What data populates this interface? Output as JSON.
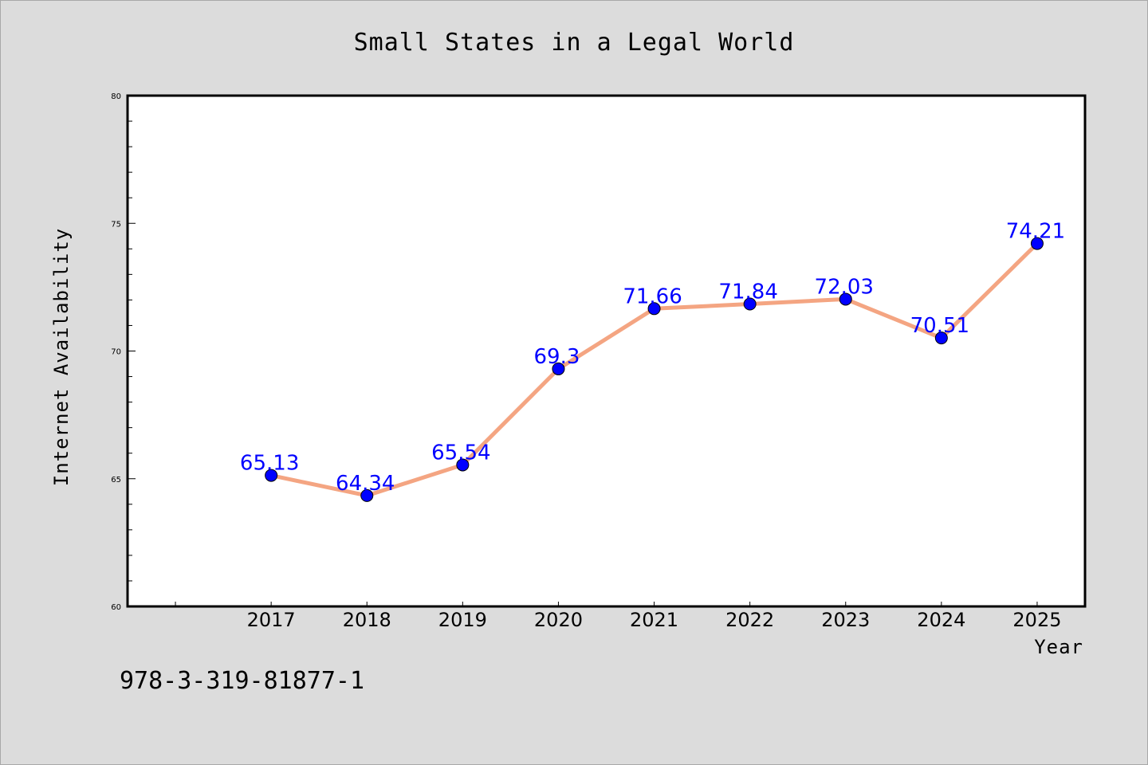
{
  "chart_data": {
    "type": "line",
    "title": "Small States in a Legal World",
    "xlabel": "Year",
    "ylabel": "Internet Availability",
    "x": [
      2017,
      2018,
      2019,
      2020,
      2021,
      2022,
      2023,
      2024,
      2025
    ],
    "values": [
      65.13,
      64.34,
      65.54,
      69.3,
      71.66,
      71.84,
      72.03,
      70.51,
      74.21
    ],
    "data_labels": [
      "65.13",
      "64.34",
      "65.54",
      "69.3",
      "71.66",
      "71.84",
      "72.03",
      "70.51",
      "74.21"
    ],
    "ylim": [
      60,
      80
    ],
    "xlim": [
      2015.5,
      2025.5
    ],
    "y_ticks": [
      60,
      65,
      70,
      75,
      80
    ],
    "grid": false,
    "legend": "none",
    "colors": {
      "line": "#f4a582",
      "marker": "#0000ff",
      "labels": "#0000ff"
    }
  },
  "footer_text": "978-3-319-81877-1"
}
